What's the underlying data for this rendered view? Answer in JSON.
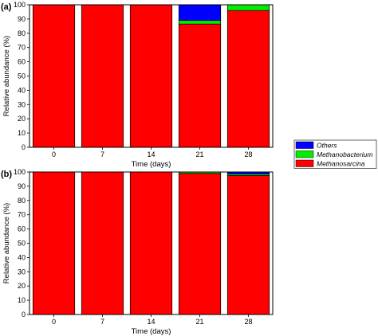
{
  "chart_data": [
    {
      "type": "bar",
      "stacked": true,
      "panel_label": "(a)",
      "categories": [
        "0",
        "7",
        "14",
        "21",
        "28"
      ],
      "xlabel": "Time (days)",
      "ylabel": "Relative abundance (%)",
      "ylim": [
        0,
        100
      ],
      "yticks": [
        0,
        10,
        20,
        30,
        40,
        50,
        60,
        70,
        80,
        90,
        100
      ],
      "series": [
        {
          "name": "Methanosarcina",
          "color": "#ff0000",
          "values": [
            100,
            100,
            100,
            86.5,
            96
          ]
        },
        {
          "name": "Methanobacterium",
          "color": "#00ee00",
          "values": [
            0,
            0,
            0,
            2.5,
            4
          ]
        },
        {
          "name": "Others",
          "color": "#0000ff",
          "values": [
            0,
            0,
            0,
            11,
            0
          ]
        }
      ]
    },
    {
      "type": "bar",
      "stacked": true,
      "panel_label": "(b)",
      "categories": [
        "0",
        "7",
        "14",
        "21",
        "28"
      ],
      "xlabel": "Time (days)",
      "ylabel": "Relative abundance (%)",
      "ylim": [
        0,
        100
      ],
      "yticks": [
        0,
        10,
        20,
        30,
        40,
        50,
        60,
        70,
        80,
        90,
        100
      ],
      "series": [
        {
          "name": "Methanosarcina",
          "color": "#ff0000",
          "values": [
            100,
            100,
            100,
            99,
            97.5
          ]
        },
        {
          "name": "Methanobacterium",
          "color": "#00ee00",
          "values": [
            0,
            0,
            0,
            1,
            1
          ]
        },
        {
          "name": "Others",
          "color": "#0000ff",
          "values": [
            0,
            0,
            0,
            0,
            1.5
          ]
        }
      ]
    }
  ],
  "legend": {
    "placement": "right",
    "items": [
      {
        "label": "Others",
        "color": "#0000ff"
      },
      {
        "label": "Methanobacterium",
        "color": "#00ee00"
      },
      {
        "label": "Methanosarcina",
        "color": "#ff0000"
      }
    ]
  }
}
